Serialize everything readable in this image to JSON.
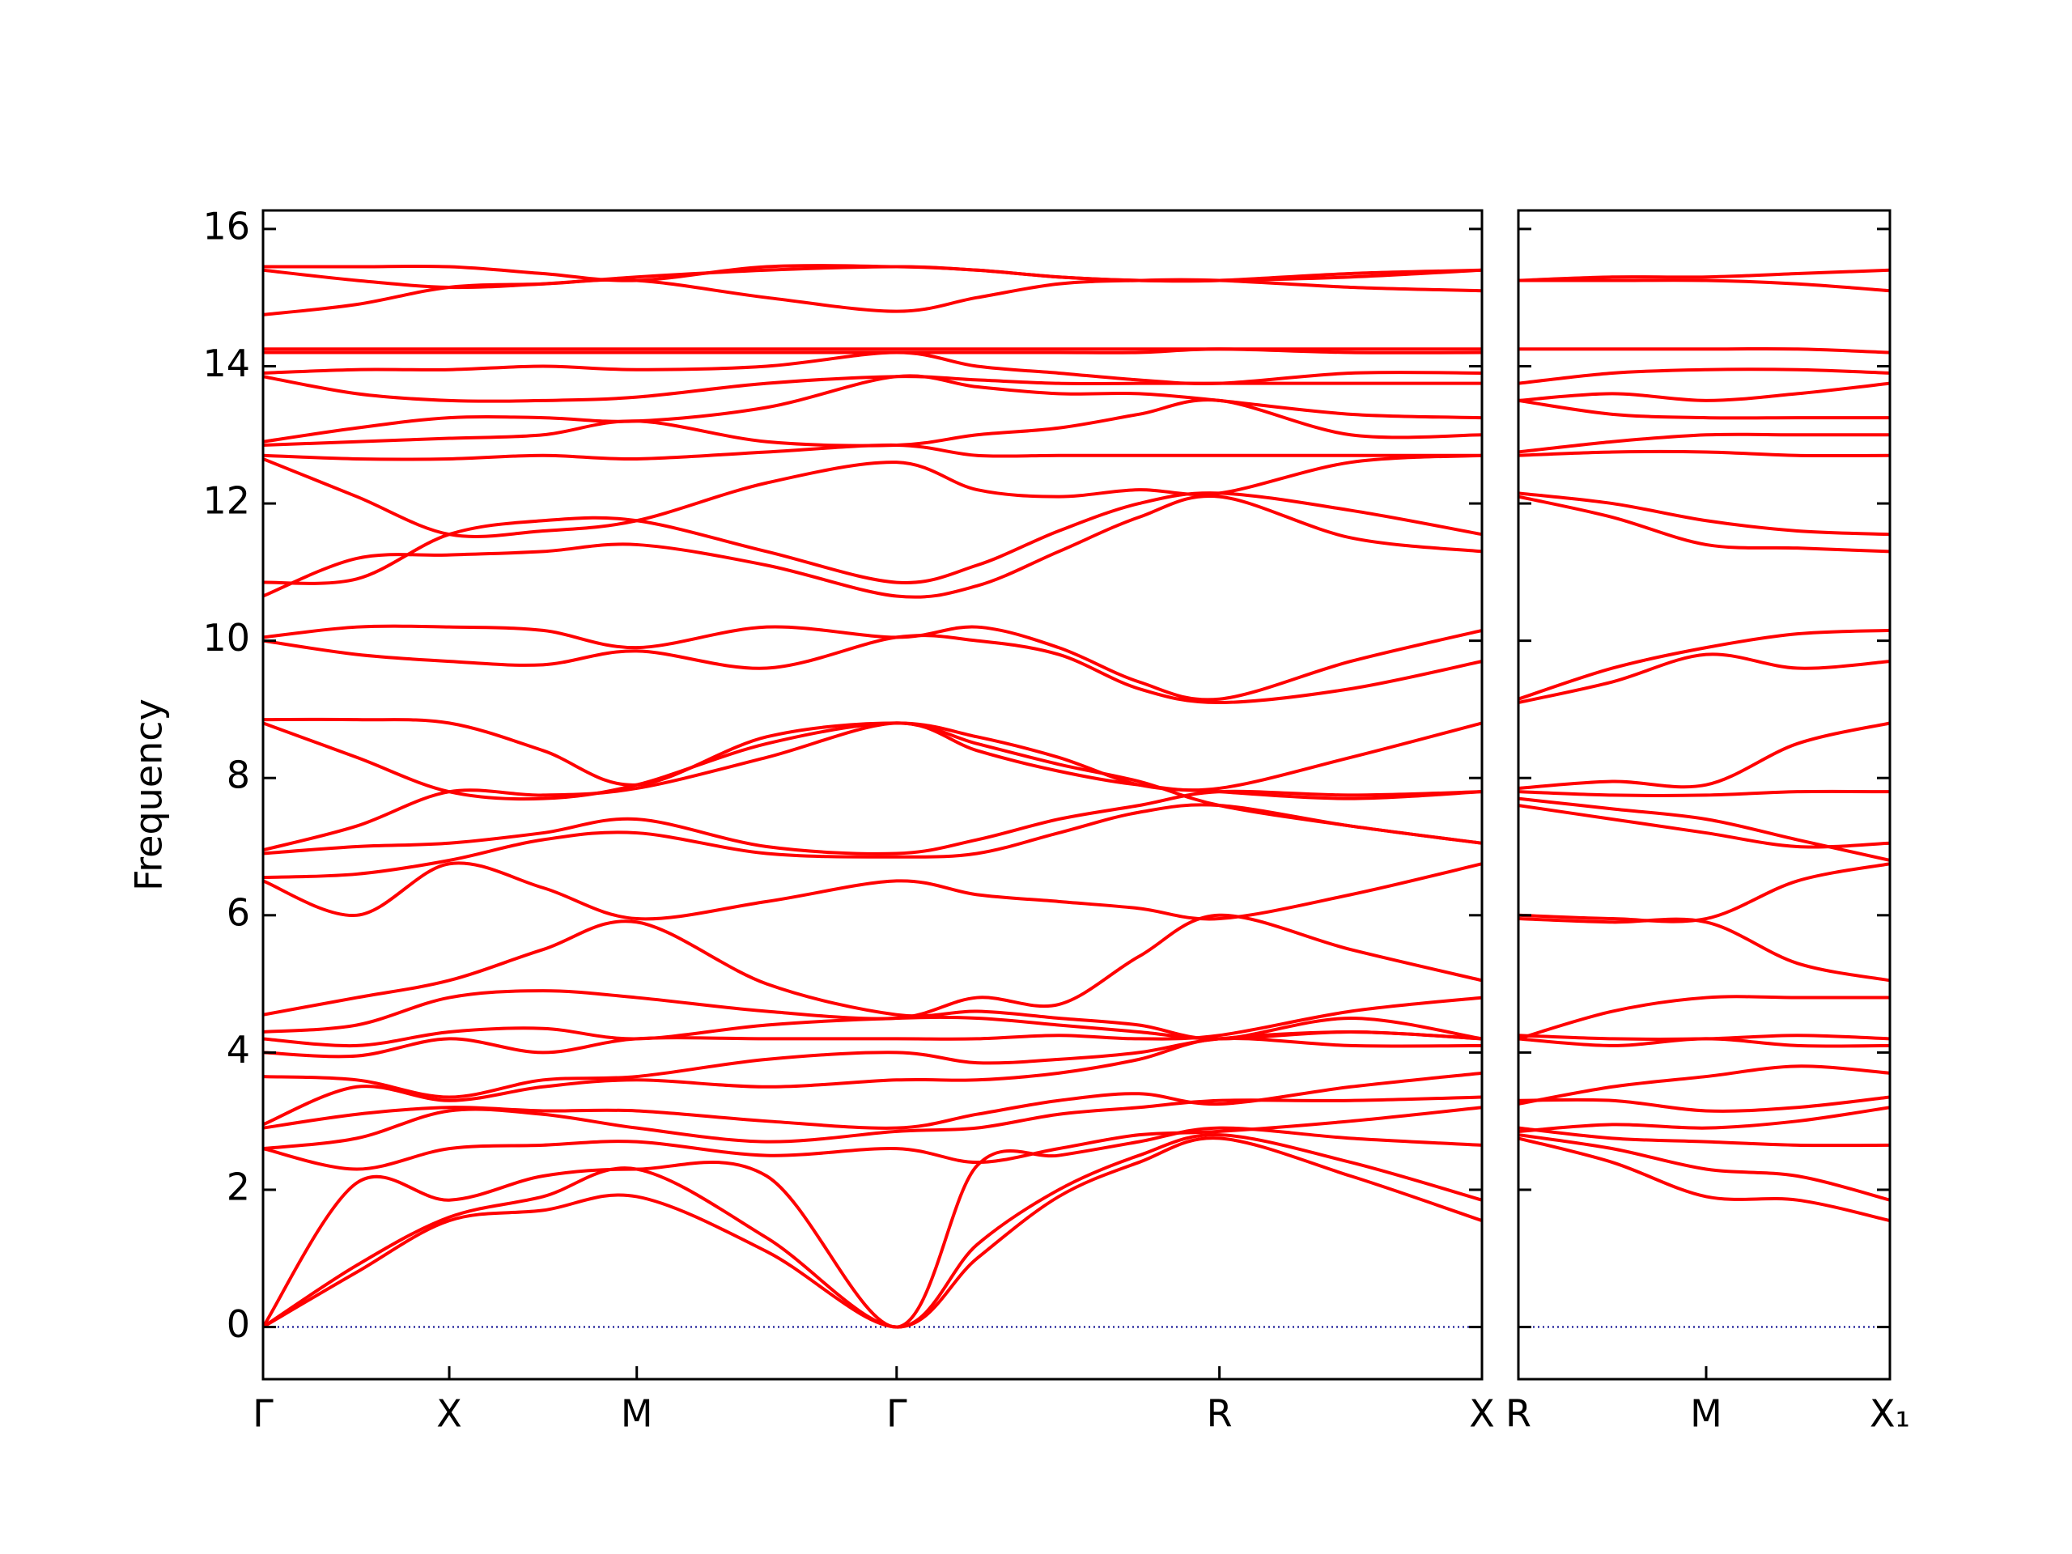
{
  "chart_data": [
    {
      "type": "line",
      "ylabel": "Frequency",
      "color": "#ff0000",
      "x": [
        0,
        0.7,
        1.39,
        2.09,
        2.79,
        3.76,
        4.73,
        5.33,
        5.94,
        6.54,
        7.14,
        8.12,
        9.1
      ],
      "xlim": [
        0,
        9.1
      ],
      "xticks": [
        {
          "value": 0,
          "label": "Γ"
        },
        {
          "value": 1.39,
          "label": "X"
        },
        {
          "value": 2.79,
          "label": "M"
        },
        {
          "value": 4.73,
          "label": "Γ"
        },
        {
          "value": 7.14,
          "label": "R"
        },
        {
          "value": 9.1,
          "label": "X"
        }
      ],
      "ylim": [
        -0.76,
        16.27
      ],
      "yticks": [
        0,
        2,
        4,
        6,
        8,
        10,
        12,
        14,
        16
      ],
      "show_ytick_labels": true,
      "hline": 0,
      "hline_color": "#00008b",
      "series": [
        {
          "values": [
            0,
            0.8,
            1.55,
            1.7,
            1.9,
            1.1,
            0,
            1.0,
            1.9,
            2.4,
            2.75,
            2.2,
            1.55
          ]
        },
        {
          "values": [
            0,
            0.9,
            1.6,
            1.9,
            2.3,
            1.3,
            0,
            1.2,
            2.0,
            2.5,
            2.8,
            2.4,
            1.85
          ]
        },
        {
          "values": [
            0,
            2.1,
            1.85,
            2.2,
            2.3,
            2.2,
            0,
            2.35,
            2.5,
            2.7,
            2.9,
            2.75,
            2.65
          ]
        },
        {
          "values": [
            2.6,
            2.3,
            2.6,
            2.65,
            2.7,
            2.5,
            2.6,
            2.4,
            2.6,
            2.8,
            2.85,
            3.0,
            3.2
          ]
        },
        {
          "values": [
            2.6,
            2.75,
            3.15,
            3.1,
            2.9,
            2.7,
            2.85,
            2.9,
            3.1,
            3.2,
            3.3,
            3.3,
            3.35
          ]
        },
        {
          "values": [
            2.9,
            3.1,
            3.2,
            3.15,
            3.15,
            3.0,
            2.9,
            3.1,
            3.3,
            3.4,
            3.25,
            3.5,
            3.7
          ]
        },
        {
          "values": [
            2.95,
            3.5,
            3.3,
            3.5,
            3.6,
            3.5,
            3.6,
            3.6,
            3.7,
            3.9,
            4.2,
            4.1,
            4.1
          ]
        },
        {
          "values": [
            3.65,
            3.6,
            3.35,
            3.6,
            3.65,
            3.9,
            4.0,
            3.85,
            3.9,
            4.0,
            4.2,
            4.3,
            4.2
          ]
        },
        {
          "values": [
            4.0,
            3.95,
            4.2,
            4.0,
            4.2,
            4.2,
            4.2,
            4.2,
            4.25,
            4.2,
            4.25,
            4.6,
            4.8
          ]
        },
        {
          "values": [
            4.2,
            4.1,
            4.3,
            4.35,
            4.2,
            4.4,
            4.5,
            4.5,
            4.4,
            4.3,
            4.2,
            4.3,
            4.2
          ]
        },
        {
          "values": [
            4.3,
            4.4,
            4.8,
            4.9,
            4.8,
            4.6,
            4.5,
            4.8,
            4.7,
            5.4,
            6.0,
            5.5,
            5.05
          ]
        },
        {
          "values": [
            4.55,
            4.8,
            5.05,
            5.5,
            5.9,
            5.0,
            4.55,
            4.6,
            4.5,
            4.4,
            4.2,
            4.5,
            4.2
          ]
        },
        {
          "values": [
            6.5,
            6.0,
            6.75,
            6.4,
            5.95,
            6.2,
            6.5,
            6.3,
            6.2,
            6.1,
            5.95,
            6.3,
            6.75
          ]
        },
        {
          "values": [
            6.55,
            6.6,
            6.8,
            7.1,
            7.2,
            6.9,
            6.85,
            6.9,
            7.2,
            7.5,
            7.6,
            7.3,
            7.05
          ]
        },
        {
          "values": [
            6.9,
            7.0,
            7.05,
            7.2,
            7.4,
            7.0,
            6.9,
            7.1,
            7.4,
            7.6,
            7.8,
            7.75,
            7.8
          ]
        },
        {
          "values": [
            6.95,
            7.3,
            7.8,
            7.75,
            7.85,
            8.3,
            8.8,
            8.4,
            8.1,
            7.9,
            7.85,
            8.3,
            8.8
          ]
        },
        {
          "values": [
            8.8,
            8.3,
            7.8,
            7.7,
            7.9,
            8.5,
            8.8,
            8.5,
            8.2,
            7.95,
            7.6,
            7.3,
            7.05
          ]
        },
        {
          "values": [
            8.85,
            8.85,
            8.8,
            8.4,
            7.9,
            8.6,
            8.8,
            8.6,
            8.3,
            7.9,
            7.8,
            7.7,
            7.8
          ]
        },
        {
          "values": [
            10.0,
            9.8,
            9.7,
            9.65,
            9.85,
            9.6,
            10.05,
            10.0,
            9.8,
            9.3,
            9.1,
            9.3,
            9.7
          ]
        },
        {
          "values": [
            10.05,
            10.2,
            10.2,
            10.15,
            9.9,
            10.2,
            10.05,
            10.2,
            9.9,
            9.4,
            9.15,
            9.7,
            10.15
          ]
        },
        {
          "values": [
            10.65,
            11.2,
            11.25,
            11.3,
            11.4,
            11.1,
            10.65,
            10.8,
            11.3,
            11.8,
            12.1,
            11.5,
            11.3
          ]
        },
        {
          "values": [
            10.85,
            10.9,
            11.55,
            11.75,
            11.75,
            11.3,
            10.85,
            11.1,
            11.6,
            12.0,
            12.15,
            11.9,
            11.55
          ]
        },
        {
          "values": [
            12.65,
            12.1,
            11.55,
            11.6,
            11.75,
            12.3,
            12.6,
            12.2,
            12.1,
            12.2,
            12.15,
            12.6,
            12.7
          ]
        },
        {
          "values": [
            12.7,
            12.65,
            12.65,
            12.7,
            12.65,
            12.75,
            12.85,
            12.7,
            12.7,
            12.7,
            12.7,
            12.7,
            12.7
          ]
        },
        {
          "values": [
            12.85,
            12.9,
            12.95,
            13.0,
            13.2,
            12.9,
            12.85,
            13.0,
            13.1,
            13.3,
            13.5,
            13.0,
            13.0
          ]
        },
        {
          "values": [
            12.9,
            13.1,
            13.25,
            13.25,
            13.2,
            13.4,
            13.85,
            13.7,
            13.6,
            13.6,
            13.5,
            13.3,
            13.25
          ]
        },
        {
          "values": [
            13.85,
            13.6,
            13.5,
            13.5,
            13.55,
            13.75,
            13.85,
            13.8,
            13.75,
            13.75,
            13.75,
            13.75,
            13.75
          ]
        },
        {
          "values": [
            13.9,
            13.95,
            13.95,
            14.0,
            13.95,
            14.0,
            14.2,
            14.0,
            13.9,
            13.8,
            13.75,
            13.9,
            13.9
          ]
        },
        {
          "values": [
            14.2,
            14.2,
            14.2,
            14.2,
            14.2,
            14.2,
            14.2,
            14.2,
            14.2,
            14.2,
            14.25,
            14.2,
            14.2
          ]
        },
        {
          "values": [
            14.25,
            14.25,
            14.25,
            14.25,
            14.25,
            14.25,
            14.25,
            14.25,
            14.25,
            14.25,
            14.25,
            14.25,
            14.25
          ]
        },
        {
          "values": [
            14.75,
            14.9,
            15.15,
            15.2,
            15.25,
            15.0,
            14.8,
            15.0,
            15.2,
            15.25,
            15.25,
            15.15,
            15.1
          ]
        },
        {
          "values": [
            15.4,
            15.25,
            15.15,
            15.2,
            15.3,
            15.4,
            15.45,
            15.4,
            15.3,
            15.25,
            15.25,
            15.3,
            15.4
          ]
        },
        {
          "values": [
            15.45,
            15.45,
            15.45,
            15.35,
            15.25,
            15.45,
            15.45,
            15.4,
            15.3,
            15.25,
            15.25,
            15.35,
            15.4
          ]
        }
      ]
    },
    {
      "type": "line",
      "color": "#ff0000",
      "x": [
        0,
        0.7,
        1.4,
        2.08,
        2.77
      ],
      "xlim": [
        0,
        2.77
      ],
      "xticks": [
        {
          "value": 0,
          "label": "R"
        },
        {
          "value": 1.4,
          "label": "M"
        },
        {
          "value": 2.77,
          "label": "X₁"
        }
      ],
      "ylim": [
        -0.76,
        16.27
      ],
      "yticks": [
        0,
        2,
        4,
        6,
        8,
        10,
        12,
        14,
        16
      ],
      "show_ytick_labels": false,
      "hline": 0,
      "hline_color": "#00008b",
      "series": [
        {
          "values": [
            2.75,
            2.4,
            1.9,
            1.85,
            1.55
          ]
        },
        {
          "values": [
            2.8,
            2.6,
            2.3,
            2.2,
            1.85
          ]
        },
        {
          "values": [
            2.9,
            2.75,
            2.7,
            2.65,
            2.65
          ]
        },
        {
          "values": [
            2.85,
            2.95,
            2.9,
            3.0,
            3.2
          ]
        },
        {
          "values": [
            3.3,
            3.3,
            3.15,
            3.2,
            3.35
          ]
        },
        {
          "values": [
            3.25,
            3.5,
            3.65,
            3.8,
            3.7
          ]
        },
        {
          "values": [
            4.2,
            4.1,
            4.2,
            4.1,
            4.1
          ]
        },
        {
          "values": [
            4.25,
            4.2,
            4.2,
            4.25,
            4.2
          ]
        },
        {
          "values": [
            4.2,
            4.6,
            4.8,
            4.8,
            4.8
          ]
        },
        {
          "values": [
            5.95,
            5.9,
            5.9,
            5.3,
            5.05
          ]
        },
        {
          "values": [
            6.0,
            5.95,
            5.95,
            6.5,
            6.75
          ]
        },
        {
          "values": [
            7.6,
            7.4,
            7.2,
            7.0,
            7.05
          ]
        },
        {
          "values": [
            7.7,
            7.55,
            7.4,
            7.1,
            6.8
          ]
        },
        {
          "values": [
            7.8,
            7.75,
            7.75,
            7.8,
            7.8
          ]
        },
        {
          "values": [
            7.85,
            7.95,
            7.9,
            8.5,
            8.8
          ]
        },
        {
          "values": [
            9.1,
            9.4,
            9.8,
            9.6,
            9.7
          ]
        },
        {
          "values": [
            9.15,
            9.6,
            9.9,
            10.1,
            10.15
          ]
        },
        {
          "values": [
            12.1,
            11.8,
            11.4,
            11.35,
            11.3
          ]
        },
        {
          "values": [
            12.15,
            12.0,
            11.75,
            11.6,
            11.55
          ]
        },
        {
          "values": [
            12.7,
            12.75,
            12.75,
            12.7,
            12.7
          ]
        },
        {
          "values": [
            12.75,
            12.9,
            13.0,
            13.0,
            13.0
          ]
        },
        {
          "values": [
            13.5,
            13.3,
            13.25,
            13.25,
            13.25
          ]
        },
        {
          "values": [
            13.5,
            13.6,
            13.5,
            13.6,
            13.75
          ]
        },
        {
          "values": [
            13.75,
            13.9,
            13.95,
            13.95,
            13.9
          ]
        },
        {
          "values": [
            14.25,
            14.25,
            14.25,
            14.25,
            14.2
          ]
        },
        {
          "values": [
            15.25,
            15.25,
            15.25,
            15.2,
            15.1
          ]
        },
        {
          "values": [
            15.25,
            15.3,
            15.3,
            15.35,
            15.4
          ]
        }
      ]
    }
  ]
}
